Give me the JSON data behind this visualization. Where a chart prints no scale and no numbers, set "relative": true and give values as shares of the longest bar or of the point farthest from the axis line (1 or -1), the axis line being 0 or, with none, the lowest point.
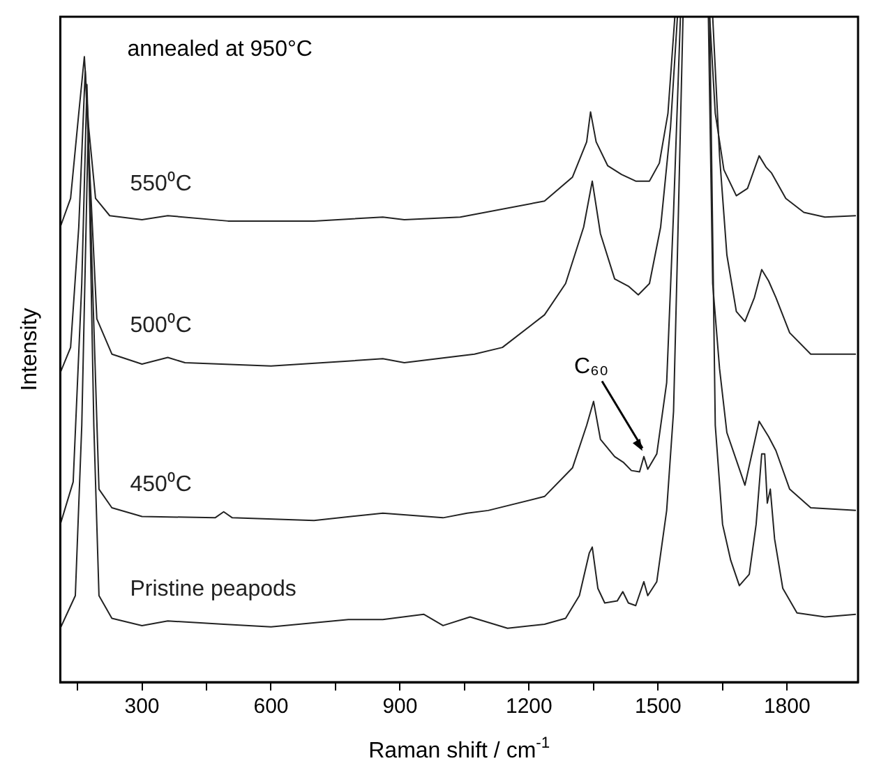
{
  "chart_data": {
    "type": "line",
    "relative": true,
    "xlabel": "Raman shift / cm$^{-1}$",
    "ylabel": "Intensity",
    "xlim": [
      110,
      1965
    ],
    "xticks": [
      {
        "value": 150,
        "label": null
      },
      300,
      {
        "value": 450,
        "label": null
      },
      600,
      {
        "value": 750,
        "label": null
      },
      900,
      {
        "value": 1050,
        "label": null
      },
      1200,
      {
        "value": 1350,
        "label": null
      },
      1500,
      {
        "value": 1650,
        "label": null
      },
      1800
    ],
    "grid": false,
    "legend": false,
    "marker": "none",
    "line_style": "solid",
    "annotations": [
      "annealed at 950°C",
      {
        "text": "C₆₀",
        "x": 1467,
        "y": 0.339
      }
    ],
    "series": [
      {
        "name": "550⁰C",
        "color": "#222222",
        "x": [
          110,
          134,
          153,
          166,
          176,
          192,
          225,
          300,
          360,
          500,
          700,
          860,
          910,
          1040,
          1236,
          1301,
          1334,
          1343,
          1356,
          1383,
          1415,
          1448,
          1480,
          1503,
          1523,
          1539,
          1620,
          1633,
          1653,
          1682,
          1708,
          1735,
          1751,
          1764,
          1797,
          1839,
          1888,
          1960
        ],
        "values": [
          0.684,
          0.727,
          0.855,
          0.94,
          0.834,
          0.727,
          0.701,
          0.695,
          0.701,
          0.693,
          0.693,
          0.699,
          0.695,
          0.699,
          0.723,
          0.759,
          0.812,
          0.857,
          0.812,
          0.776,
          0.763,
          0.753,
          0.753,
          0.78,
          0.855,
          1,
          1,
          0.855,
          0.77,
          0.731,
          0.742,
          0.791,
          0.774,
          0.765,
          0.727,
          0.706,
          0.699,
          0.701
        ]
      },
      {
        "name": "500⁰C",
        "color": "#222222",
        "x": [
          110,
          134,
          153,
          168,
          180,
          195,
          230,
          300,
          360,
          400,
          600,
          860,
          910,
          1073,
          1138,
          1236,
          1285,
          1327,
          1347,
          1366,
          1399,
          1431,
          1454,
          1480,
          1506,
          1529,
          1545,
          1627,
          1643,
          1660,
          1682,
          1702,
          1724,
          1741,
          1757,
          1774,
          1806,
          1855,
          1960
        ],
        "values": [
          0.465,
          0.503,
          0.684,
          0.919,
          0.748,
          0.546,
          0.493,
          0.478,
          0.488,
          0.48,
          0.475,
          0.486,
          0.48,
          0.493,
          0.503,
          0.552,
          0.599,
          0.684,
          0.753,
          0.674,
          0.606,
          0.595,
          0.582,
          0.599,
          0.684,
          0.834,
          1,
          1,
          0.791,
          0.642,
          0.557,
          0.542,
          0.578,
          0.62,
          0.603,
          0.578,
          0.525,
          0.493,
          0.493
        ]
      },
      {
        "name": "450⁰C",
        "color": "#222222",
        "x": [
          110,
          140,
          160,
          172,
          185,
          200,
          230,
          300,
          470,
          490,
          510,
          700,
          860,
          1000,
          1056,
          1105,
          1236,
          1301,
          1334,
          1350,
          1366,
          1399,
          1420,
          1438,
          1457,
          1467,
          1476,
          1497,
          1520,
          1536,
          1552,
          1617,
          1627,
          1643,
          1660,
          1702,
          1735,
          1757,
          1774,
          1806,
          1855,
          1960
        ],
        "values": [
          0.237,
          0.301,
          0.599,
          0.898,
          0.599,
          0.29,
          0.262,
          0.249,
          0.247,
          0.256,
          0.247,
          0.243,
          0.254,
          0.247,
          0.254,
          0.258,
          0.279,
          0.322,
          0.386,
          0.422,
          0.365,
          0.339,
          0.33,
          0.318,
          0.316,
          0.339,
          0.32,
          0.343,
          0.45,
          0.706,
          1,
          1,
          0.599,
          0.471,
          0.375,
          0.296,
          0.392,
          0.369,
          0.348,
          0.29,
          0.262,
          0.258
        ]
      },
      {
        "name": "Pristine peapods",
        "color": "#222222",
        "x": [
          110,
          145,
          160,
          175,
          188,
          200,
          230,
          300,
          360,
          490,
          600,
          780,
          860,
          955,
          1000,
          1063,
          1150,
          1236,
          1285,
          1317,
          1340,
          1347,
          1360,
          1376,
          1405,
          1418,
          1431,
          1448,
          1467,
          1476,
          1497,
          1520,
          1536,
          1545,
          1558,
          1620,
          1633,
          1650,
          1669,
          1689,
          1712,
          1728,
          1741,
          1748,
          1754,
          1761,
          1771,
          1790,
          1823,
          1888,
          1960
        ],
        "values": [
          0.081,
          0.13,
          0.386,
          0.834,
          0.386,
          0.13,
          0.096,
          0.085,
          0.092,
          0.087,
          0.083,
          0.094,
          0.094,
          0.102,
          0.085,
          0.098,
          0.081,
          0.087,
          0.096,
          0.13,
          0.194,
          0.203,
          0.141,
          0.119,
          0.122,
          0.136,
          0.119,
          0.115,
          0.151,
          0.13,
          0.151,
          0.258,
          0.407,
          0.642,
          1,
          1,
          0.386,
          0.237,
          0.183,
          0.145,
          0.162,
          0.237,
          0.343,
          0.343,
          0.269,
          0.29,
          0.215,
          0.141,
          0.104,
          0.098,
          0.102
        ]
      }
    ]
  }
}
